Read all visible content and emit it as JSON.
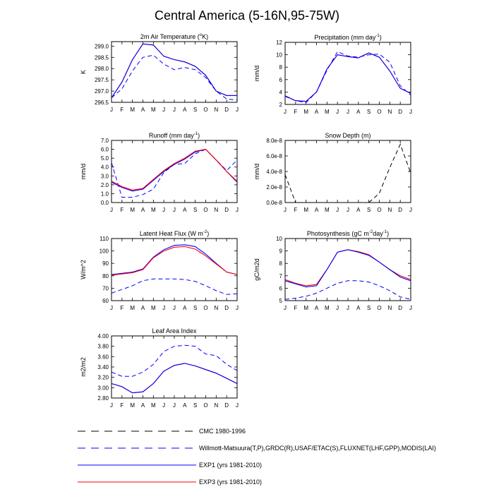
{
  "figure": {
    "title": "Central America (5-16N,95-75W)",
    "months": [
      "J",
      "F",
      "M",
      "A",
      "M",
      "J",
      "J",
      "A",
      "S",
      "O",
      "N",
      "D",
      "J"
    ]
  },
  "legend": [
    {
      "label": "CMC 1980-1996",
      "color": "#000000",
      "dash": true
    },
    {
      "label": "Willmott-Matsuura(T,P),GRDC(R),USAF/ETAC(S),FLUXNET(LHF,GPP),MODIS(LAI)",
      "color": "#0000ff",
      "dash": true
    },
    {
      "label": "EXP1 (yrs 1981-2010)",
      "color": "#0000ff",
      "dash": false
    },
    {
      "label": "EXP3 (yrs 1981-2010)",
      "color": "#ff0000",
      "dash": false
    }
  ],
  "chart_data": [
    {
      "id": "temp",
      "type": "line",
      "title": "2m Air Temperature (",
      "title_sup": "o",
      "title_post": "K)",
      "ylabel": "K",
      "ylim": [
        296.5,
        299.2
      ],
      "yticks": [
        296.5,
        297.0,
        297.5,
        298.0,
        298.5,
        299.0
      ],
      "ytick_labels": [
        "296.5",
        "297.0",
        "297.5",
        "298.0",
        "298.5",
        "299.0"
      ],
      "series": [
        {
          "name": "Willmott-Matsuura",
          "color": "#0000ff",
          "dash": true,
          "values": [
            296.7,
            297.1,
            297.9,
            298.5,
            298.6,
            298.2,
            297.95,
            298.05,
            297.95,
            297.6,
            297.0,
            296.65,
            296.6
          ]
        },
        {
          "name": "EXP3",
          "color": "#ff0000",
          "dash": false,
          "values": [
            296.7,
            297.4,
            298.4,
            299.1,
            299.05,
            298.55,
            298.4,
            298.3,
            298.1,
            297.7,
            297.0,
            296.8,
            296.8
          ]
        },
        {
          "name": "EXP1",
          "color": "#0000ff",
          "dash": false,
          "values": [
            296.7,
            297.4,
            298.4,
            299.1,
            299.05,
            298.55,
            298.4,
            298.3,
            298.1,
            297.7,
            297.0,
            296.8,
            296.8
          ]
        }
      ]
    },
    {
      "id": "precip",
      "type": "line",
      "title": "Precipitation (mm day",
      "title_sup": "-1",
      "title_post": ")",
      "ylabel": "mm/d",
      "ylim": [
        2,
        12
      ],
      "yticks": [
        2,
        4,
        6,
        8,
        10,
        12
      ],
      "ytick_labels": [
        "2",
        "4",
        "6",
        "8",
        "10",
        "12"
      ],
      "series": [
        {
          "name": "Willmott-Matsuura",
          "color": "#0000ff",
          "dash": true,
          "values": [
            3.3,
            2.6,
            2.3,
            4.0,
            7.5,
            10.5,
            9.8,
            9.6,
            10.0,
            10.1,
            8.8,
            5.0,
            3.5
          ]
        },
        {
          "name": "EXP3",
          "color": "#ff0000",
          "dash": false,
          "values": [
            3.4,
            2.6,
            2.5,
            4.0,
            7.7,
            10.0,
            9.7,
            9.5,
            10.3,
            9.6,
            7.4,
            4.6,
            3.8
          ]
        },
        {
          "name": "EXP1",
          "color": "#0000ff",
          "dash": false,
          "values": [
            3.4,
            2.6,
            2.5,
            4.0,
            7.7,
            10.0,
            9.7,
            9.5,
            10.3,
            9.6,
            7.4,
            4.6,
            3.8
          ]
        }
      ]
    },
    {
      "id": "runoff",
      "type": "line",
      "title": "Runoff (mm day",
      "title_sup": "-1",
      "title_post": ")",
      "ylabel": "mm/d",
      "ylim": [
        0,
        7
      ],
      "yticks": [
        0,
        1,
        2,
        3,
        4,
        5,
        6,
        7
      ],
      "ytick_labels": [
        "0.0",
        "1.0",
        "2.0",
        "3.0",
        "4.0",
        "5.0",
        "6.0",
        "7.0"
      ],
      "series": [
        {
          "name": "GRDC",
          "color": "#0000ff",
          "dash": true,
          "values": [
            4.5,
            0.6,
            0.6,
            0.9,
            1.5,
            3.4,
            4.3,
            4.4,
            5.5,
            6.0,
            4.8,
            3.6,
            4.8
          ]
        },
        {
          "name": "EXP1",
          "color": "#0000ff",
          "dash": false,
          "values": [
            2.3,
            1.7,
            1.3,
            1.5,
            2.5,
            3.5,
            4.3,
            4.9,
            5.7,
            6.0,
            4.8,
            3.5,
            2.3
          ]
        },
        {
          "name": "EXP3",
          "color": "#ff0000",
          "dash": false,
          "values": [
            2.4,
            1.8,
            1.4,
            1.6,
            2.6,
            3.6,
            4.4,
            5.0,
            5.8,
            6.0,
            4.8,
            3.5,
            2.4
          ]
        }
      ]
    },
    {
      "id": "snow",
      "type": "line",
      "title": "Snow Depth (m)",
      "title_sup": "",
      "title_post": "",
      "ylabel": "mm/d",
      "ylim": [
        0,
        8e-08
      ],
      "yticks": [
        0,
        2e-08,
        4e-08,
        6e-08,
        8e-08
      ],
      "ytick_labels": [
        "0.0e-8",
        "2.0e-8",
        "4.0e-8",
        "6.0e-8",
        "8.0e-8"
      ],
      "series": [
        {
          "name": "CMC",
          "color": "#000000",
          "dash": true,
          "values": [
            3.6e-08,
            0.0,
            null,
            null,
            null,
            null,
            null,
            null,
            0.0,
            1.2e-08,
            4.5e-08,
            7.5e-08,
            3.8e-08
          ]
        }
      ]
    },
    {
      "id": "lhf",
      "type": "line",
      "title": "Latent Heat Flux (W m",
      "title_sup": "-2",
      "title_post": ")",
      "ylabel": "W/m^2",
      "ylim": [
        60,
        110
      ],
      "yticks": [
        60,
        70,
        80,
        90,
        100,
        110
      ],
      "ytick_labels": [
        "60",
        "70",
        "80",
        "90",
        "100",
        "110"
      ],
      "series": [
        {
          "name": "FLUXNET",
          "color": "#0000ff",
          "dash": true,
          "values": [
            66,
            69,
            72,
            76,
            77.5,
            77.5,
            77.5,
            77,
            75.5,
            72,
            68,
            65,
            65.5
          ]
        },
        {
          "name": "EXP1",
          "color": "#0000ff",
          "dash": false,
          "values": [
            81,
            82,
            83,
            85.5,
            95,
            101,
            104.5,
            105,
            103.5,
            97.5,
            90,
            83,
            81
          ]
        },
        {
          "name": "EXP3",
          "color": "#ff0000",
          "dash": false,
          "values": [
            80.5,
            81.5,
            82.5,
            85,
            94.5,
            100,
            103,
            103.5,
            101.5,
            96,
            89.5,
            83,
            81
          ]
        }
      ]
    },
    {
      "id": "photo",
      "type": "line",
      "title": "Photosynthesis (gC m",
      "title_sup": "-2",
      "title_mid": "day",
      "title_sup2": "-1",
      "title_post": ")",
      "ylabel": "gC/m2d",
      "ylim": [
        5,
        10
      ],
      "yticks": [
        5,
        6,
        7,
        8,
        9,
        10
      ],
      "ytick_labels": [
        "5",
        "6",
        "7",
        "8",
        "9",
        "10"
      ],
      "series": [
        {
          "name": "FLUXNET",
          "color": "#0000ff",
          "dash": true,
          "values": [
            5.1,
            5.2,
            5.35,
            5.6,
            6.0,
            6.4,
            6.6,
            6.6,
            6.5,
            6.2,
            5.8,
            5.3,
            5.1
          ]
        },
        {
          "name": "EXP3",
          "color": "#ff0000",
          "dash": false,
          "values": [
            6.7,
            6.4,
            6.2,
            6.3,
            7.5,
            8.9,
            9.1,
            8.95,
            8.7,
            8.1,
            7.5,
            7.0,
            6.7
          ]
        },
        {
          "name": "EXP1",
          "color": "#0000ff",
          "dash": false,
          "values": [
            6.6,
            6.35,
            6.1,
            6.2,
            7.5,
            8.9,
            9.1,
            8.9,
            8.65,
            8.1,
            7.5,
            6.9,
            6.6
          ]
        }
      ]
    },
    {
      "id": "lai",
      "type": "line",
      "title": "Leaf Area Index",
      "title_sup": "",
      "title_post": "",
      "ylabel": "m2/m2",
      "ylim": [
        2.8,
        4.0
      ],
      "yticks": [
        2.8,
        3.0,
        3.2,
        3.4,
        3.6,
        3.8,
        4.0
      ],
      "ytick_labels": [
        "2.80",
        "3.00",
        "3.20",
        "3.40",
        "3.60",
        "3.80",
        "4.00"
      ],
      "series": [
        {
          "name": "MODIS",
          "color": "#0000ff",
          "dash": true,
          "values": [
            3.3,
            3.22,
            3.22,
            3.3,
            3.45,
            3.7,
            3.8,
            3.82,
            3.8,
            3.65,
            3.62,
            3.45,
            3.33
          ]
        },
        {
          "name": "EXP3",
          "color": "#ff0000",
          "dash": false,
          "values": [
            3.08,
            3.02,
            2.9,
            2.92,
            3.08,
            3.32,
            3.43,
            3.47,
            3.42,
            3.35,
            3.28,
            3.18,
            3.08
          ]
        },
        {
          "name": "EXP1",
          "color": "#0000ff",
          "dash": false,
          "values": [
            3.08,
            3.02,
            2.9,
            2.92,
            3.08,
            3.32,
            3.43,
            3.47,
            3.42,
            3.35,
            3.28,
            3.18,
            3.08
          ]
        }
      ]
    }
  ]
}
